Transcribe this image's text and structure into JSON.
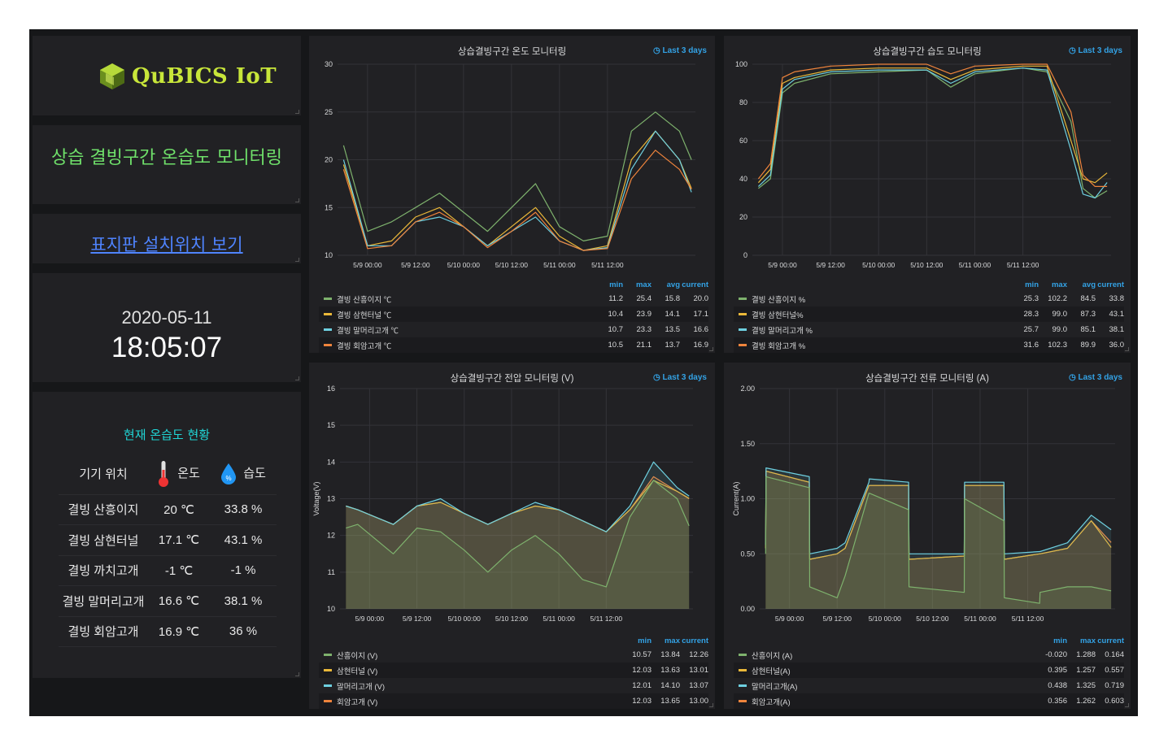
{
  "logo": {
    "text": "QuBICS IoT"
  },
  "subtitle": "상습 결빙구간 온습도 모니터링",
  "location_link": "표지판 설치위치 보기",
  "clock": {
    "date": "2020-05-11",
    "time": "18:05:07"
  },
  "status": {
    "title": "현재 온습도 현황",
    "headers": {
      "location": "기기 위치",
      "temp": "온도",
      "humidity": "습도",
      "humidity_icon_text": "%"
    },
    "rows": [
      {
        "name": "결빙 산흥이지",
        "temp": "20 ℃",
        "hum": "33.8 %"
      },
      {
        "name": "결빙 삼현터널",
        "temp": "17.1 ℃",
        "hum": "43.1 %"
      },
      {
        "name": "결빙 까치고개",
        "temp": "-1 ℃",
        "hum": "-1 %"
      },
      {
        "name": "결빙 말머리고개",
        "temp": "16.6 ℃",
        "hum": "38.1 %"
      },
      {
        "name": "결빙 회암고개",
        "temp": "16.9 ℃",
        "hum": "36 %"
      }
    ]
  },
  "colors": {
    "green": "#7eb26d",
    "yellow": "#eab839",
    "cyan": "#6ed0e0",
    "orange": "#ef843c",
    "accent_blue": "#33a2e5"
  },
  "panels": {
    "temp": {
      "title": "상습결빙구간 온도 모니터링",
      "time_badge": "Last 3 days",
      "legend_headers": [
        "min",
        "max",
        "avg",
        "current"
      ],
      "legend": [
        {
          "name": "결빙 산흥이지 ℃",
          "color": "#7eb26d",
          "vals": [
            "11.2",
            "25.4",
            "15.8",
            "20.0"
          ]
        },
        {
          "name": "결빙 삼현터널 ℃",
          "color": "#eab839",
          "vals": [
            "10.4",
            "23.9",
            "14.1",
            "17.1"
          ]
        },
        {
          "name": "결빙 말머리고개 ℃",
          "color": "#6ed0e0",
          "vals": [
            "10.7",
            "23.3",
            "13.5",
            "16.6"
          ]
        },
        {
          "name": "결빙 회암고개 ℃",
          "color": "#ef843c",
          "vals": [
            "10.5",
            "21.1",
            "13.7",
            "16.9"
          ]
        }
      ]
    },
    "humidity": {
      "title": "상습결빙구간 습도 모니터링",
      "time_badge": "Last 3 days",
      "legend_headers": [
        "min",
        "max",
        "avg",
        "current"
      ],
      "legend": [
        {
          "name": "결빙 산흥이지 %",
          "color": "#7eb26d",
          "vals": [
            "25.3",
            "102.2",
            "84.5",
            "33.8"
          ]
        },
        {
          "name": "결빙 삼현터널%",
          "color": "#eab839",
          "vals": [
            "28.3",
            "99.0",
            "87.3",
            "43.1"
          ]
        },
        {
          "name": "결빙 말머리고개 %",
          "color": "#6ed0e0",
          "vals": [
            "25.7",
            "99.0",
            "85.1",
            "38.1"
          ]
        },
        {
          "name": "결빙 회암고개 %",
          "color": "#ef843c",
          "vals": [
            "31.6",
            "102.3",
            "89.9",
            "36.0"
          ]
        }
      ]
    },
    "voltage": {
      "title": "상습결빙구간 전압 모니터링 (V)",
      "time_badge": "Last 3 days",
      "legend_headers": [
        "min",
        "max",
        "current"
      ],
      "legend": [
        {
          "name": "산흥이지 (V)",
          "color": "#7eb26d",
          "vals": [
            "10.57",
            "13.84",
            "12.26"
          ]
        },
        {
          "name": "삼현터널 (V)",
          "color": "#eab839",
          "vals": [
            "12.03",
            "13.63",
            "13.01"
          ]
        },
        {
          "name": "말머리고개 (V)",
          "color": "#6ed0e0",
          "vals": [
            "12.01",
            "14.10",
            "13.07"
          ]
        },
        {
          "name": "회암고개 (V)",
          "color": "#ef843c",
          "vals": [
            "12.03",
            "13.65",
            "13.00"
          ]
        }
      ]
    },
    "current": {
      "title": "상습결빙구간 전류 모니터링 (A)",
      "time_badge": "Last 3 days",
      "legend_headers": [
        "min",
        "max",
        "current"
      ],
      "legend": [
        {
          "name": "산흥이지 (A)",
          "color": "#7eb26d",
          "vals": [
            "-0.020",
            "1.288",
            "0.164"
          ]
        },
        {
          "name": "삼현터널(A)",
          "color": "#eab839",
          "vals": [
            "0.395",
            "1.257",
            "0.557"
          ]
        },
        {
          "name": "말머리고개(A)",
          "color": "#6ed0e0",
          "vals": [
            "0.438",
            "1.325",
            "0.719"
          ]
        },
        {
          "name": "회암고개(A)",
          "color": "#ef843c",
          "vals": [
            "0.356",
            "1.262",
            "0.603"
          ]
        }
      ]
    }
  },
  "chart_data": [
    {
      "type": "line",
      "title": "상습결빙구간 온도 모니터링",
      "x_ticks": [
        "5/9 00:00",
        "5/9 12:00",
        "5/10 00:00",
        "5/10 12:00",
        "5/11 00:00",
        "5/11 12:00"
      ],
      "ylim": [
        10,
        30
      ],
      "y_ticks": [
        10,
        15,
        20,
        25,
        30
      ],
      "x": [
        -6,
        0,
        6,
        12,
        18,
        24,
        30,
        36,
        42,
        48,
        54,
        60,
        66,
        72,
        78,
        81
      ],
      "series": [
        {
          "name": "결빙 산흥이지 ℃",
          "color": "#7eb26d",
          "values": [
            21.5,
            12.5,
            13.5,
            15,
            16.5,
            14.5,
            12.5,
            15,
            17.5,
            13,
            11.5,
            12,
            23,
            25,
            23,
            20
          ]
        },
        {
          "name": "결빙 삼현터널 ℃",
          "color": "#eab839",
          "values": [
            19.5,
            11,
            11.5,
            14,
            15,
            13,
            11,
            13,
            15,
            12,
            10.5,
            11,
            20,
            23,
            20,
            17
          ]
        },
        {
          "name": "결빙 말머리고개 ℃",
          "color": "#6ed0e0",
          "values": [
            20,
            11,
            11,
            13.5,
            14,
            13,
            11,
            12.5,
            14,
            11.5,
            10.5,
            10.8,
            19,
            23,
            20,
            16.6
          ]
        },
        {
          "name": "결빙 회암고개 ℃",
          "color": "#ef843c",
          "values": [
            19,
            10.7,
            11,
            13.5,
            14.5,
            13,
            10.8,
            12.5,
            14.5,
            11.5,
            10.5,
            10.7,
            18,
            21,
            19,
            16.9
          ]
        }
      ]
    },
    {
      "type": "line",
      "title": "상습결빙구간 습도 모니터링",
      "x_ticks": [
        "5/9 00:00",
        "5/9 12:00",
        "5/10 00:00",
        "5/10 12:00",
        "5/11 00:00",
        "5/11 12:00"
      ],
      "ylim": [
        0,
        100
      ],
      "y_ticks": [
        0,
        20,
        40,
        60,
        80,
        100
      ],
      "x": [
        -6,
        -3,
        0,
        3,
        12,
        24,
        36,
        42,
        48,
        60,
        66,
        72,
        75,
        78,
        81
      ],
      "series": [
        {
          "name": "결빙 산흥이지 %",
          "color": "#7eb26d",
          "values": [
            35,
            40,
            85,
            90,
            95,
            96,
            97,
            88,
            95,
            98,
            96,
            70,
            35,
            30,
            33.8
          ]
        },
        {
          "name": "결빙 삼현터널%",
          "color": "#eab839",
          "values": [
            38,
            45,
            90,
            93,
            97,
            98,
            98,
            92,
            97,
            99,
            99,
            60,
            40,
            38,
            43.1
          ]
        },
        {
          "name": "결빙 말머리고개 %",
          "color": "#6ed0e0",
          "values": [
            36,
            42,
            87,
            92,
            96,
            97,
            97,
            90,
            96,
            98,
            97,
            55,
            32,
            30,
            38.1
          ]
        },
        {
          "name": "결빙 회암고개 %",
          "color": "#ef843c",
          "values": [
            40,
            48,
            93,
            96,
            99,
            100,
            100,
            95,
            99,
            100,
            100,
            75,
            42,
            36,
            36.0
          ]
        }
      ]
    },
    {
      "type": "area",
      "title": "상습결빙구간 전압 모니터링 (V)",
      "ylabel": "Voltage(V)",
      "x_ticks": [
        "5/9 00:00",
        "5/9 12:00",
        "5/10 00:00",
        "5/10 12:00",
        "5/11 00:00",
        "5/11 12:00"
      ],
      "ylim": [
        10,
        16
      ],
      "y_ticks": [
        10,
        11,
        12,
        13,
        14,
        15,
        16
      ],
      "x": [
        -6,
        -3,
        6,
        12,
        18,
        24,
        30,
        36,
        42,
        48,
        54,
        60,
        66,
        72,
        78,
        81
      ],
      "series": [
        {
          "name": "산흥이지 (V)",
          "color": "#7eb26d",
          "values": [
            12.2,
            12.3,
            11.5,
            12.2,
            12.1,
            11.6,
            11.0,
            11.6,
            12.0,
            11.5,
            10.8,
            10.6,
            12.5,
            13.5,
            13.0,
            12.26
          ]
        },
        {
          "name": "삼현터널 (V)",
          "color": "#eab839",
          "values": [
            12.8,
            12.7,
            12.3,
            12.8,
            12.9,
            12.6,
            12.3,
            12.6,
            12.8,
            12.7,
            12.4,
            12.1,
            12.7,
            13.5,
            13.2,
            13.01
          ]
        },
        {
          "name": "말머리고개 (V)",
          "color": "#6ed0e0",
          "values": [
            12.8,
            12.7,
            12.3,
            12.8,
            13.0,
            12.6,
            12.3,
            12.6,
            12.9,
            12.7,
            12.4,
            12.1,
            12.8,
            14.0,
            13.3,
            13.07
          ]
        },
        {
          "name": "회암고개 (V)",
          "color": "#ef843c",
          "values": [
            12.8,
            12.7,
            12.3,
            12.8,
            12.9,
            12.6,
            12.3,
            12.6,
            12.8,
            12.7,
            12.4,
            12.1,
            12.7,
            13.6,
            13.2,
            13.0
          ]
        }
      ]
    },
    {
      "type": "area",
      "title": "상습결빙구간 전류 모니터링 (A)",
      "ylabel": "Current(A)",
      "x_ticks": [
        "5/9 00:00",
        "5/9 12:00",
        "5/10 00:00",
        "5/10 12:00",
        "5/11 00:00",
        "5/11 12:00"
      ],
      "ylim": [
        0,
        2.0
      ],
      "y_ticks": [
        0,
        0.5,
        1.0,
        1.5,
        2.0
      ],
      "x": [
        -6,
        -5.9,
        5,
        5.1,
        12,
        14,
        20,
        20.1,
        30,
        30.1,
        44,
        44.1,
        54,
        54.1,
        63,
        63.1,
        70,
        76,
        81
      ],
      "series": [
        {
          "name": "산흥이지 (A)",
          "color": "#7eb26d",
          "values": [
            0.5,
            1.2,
            1.1,
            0.2,
            0.1,
            0.3,
            1.05,
            1.05,
            0.9,
            0.2,
            0.15,
            1.0,
            0.8,
            0.1,
            0.05,
            0.15,
            0.2,
            0.2,
            0.164
          ]
        },
        {
          "name": "삼현터널(A)",
          "color": "#eab839",
          "values": [
            0.55,
            1.25,
            1.15,
            0.45,
            0.5,
            0.55,
            1.12,
            1.12,
            1.12,
            0.45,
            0.48,
            1.12,
            1.12,
            0.45,
            0.5,
            0.5,
            0.55,
            0.8,
            0.557
          ]
        },
        {
          "name": "말머리고개(A)",
          "color": "#6ed0e0",
          "values": [
            0.58,
            1.28,
            1.2,
            0.5,
            0.55,
            0.6,
            1.15,
            1.18,
            1.15,
            0.5,
            0.5,
            1.15,
            1.15,
            0.5,
            0.52,
            0.52,
            0.6,
            0.85,
            0.719
          ]
        },
        {
          "name": "회암고개(A)",
          "color": "#ef843c",
          "values": [
            0.55,
            1.25,
            1.15,
            0.45,
            0.5,
            0.55,
            1.12,
            1.12,
            1.12,
            0.45,
            0.48,
            1.12,
            1.12,
            0.45,
            0.5,
            0.5,
            0.55,
            0.8,
            0.603
          ]
        }
      ]
    }
  ]
}
